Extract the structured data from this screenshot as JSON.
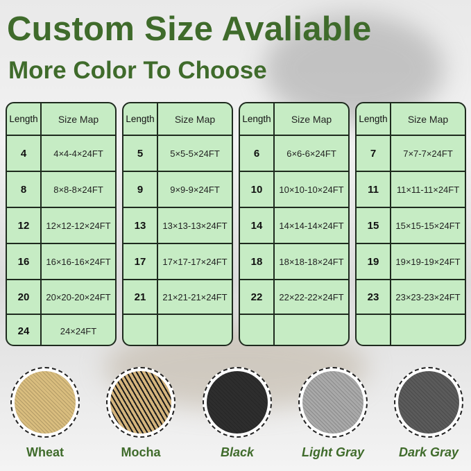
{
  "title": "Custom Size Avaliable",
  "subtitle": "More Color To Choose",
  "table_headers": {
    "length": "Length",
    "size_map": "Size Map"
  },
  "tables": [
    [
      [
        "4",
        "4×4-4×24FT"
      ],
      [
        "8",
        "8×8-8×24FT"
      ],
      [
        "12",
        "12×12-12×24FT"
      ],
      [
        "16",
        "16×16-16×24FT"
      ],
      [
        "20",
        "20×20-20×24FT"
      ],
      [
        "24",
        "24×24FT"
      ]
    ],
    [
      [
        "5",
        "5×5-5×24FT"
      ],
      [
        "9",
        "9×9-9×24FT"
      ],
      [
        "13",
        "13×13-13×24FT"
      ],
      [
        "17",
        "17×17-17×24FT"
      ],
      [
        "21",
        "21×21-21×24FT"
      ],
      [
        "",
        ""
      ]
    ],
    [
      [
        "6",
        "6×6-6×24FT"
      ],
      [
        "10",
        "10×10-10×24FT"
      ],
      [
        "14",
        "14×14-14×24FT"
      ],
      [
        "18",
        "18×18-18×24FT"
      ],
      [
        "22",
        "22×22-22×24FT"
      ],
      [
        "",
        ""
      ]
    ],
    [
      [
        "7",
        "7×7-7×24FT"
      ],
      [
        "11",
        "11×11-11×24FT"
      ],
      [
        "15",
        "15×15-15×24FT"
      ],
      [
        "19",
        "19×19-19×24FT"
      ],
      [
        "23",
        "23×23-23×24FT"
      ],
      [
        "",
        ""
      ]
    ]
  ],
  "colors": [
    {
      "name": "Wheat",
      "swatch": "#d9bd7e",
      "italic": false
    },
    {
      "name": "Mocha",
      "swatch": "#8a7048",
      "italic": false
    },
    {
      "name": "Black",
      "swatch": "#2e2e2e",
      "italic": true
    },
    {
      "name": "Light Gray",
      "swatch": "#a9a9a9",
      "italic": true
    },
    {
      "name": "Dark Gray",
      "swatch": "#5b5b5b",
      "italic": true
    }
  ],
  "accent_color": "#3f6b2b",
  "table_fill": "#c6ecc4"
}
